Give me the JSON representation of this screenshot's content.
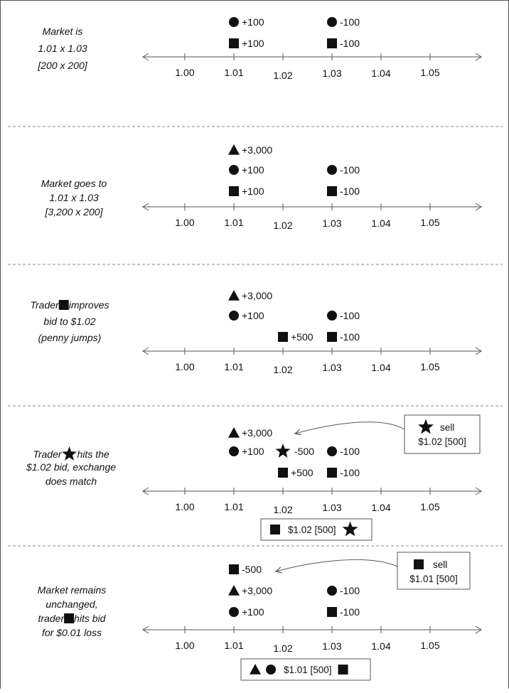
{
  "panels": [
    {
      "label_lines": [
        "Market is",
        "1.01 x 1.03",
        "[200 x 200]"
      ],
      "rows": [
        {
          "items": [
            {
              "shape": "circle",
              "at": "1.01",
              "text": "+100"
            },
            {
              "shape": "circle",
              "at": "1.03",
              "text": "-100"
            }
          ]
        },
        {
          "items": [
            {
              "shape": "square",
              "at": "1.01",
              "text": "+100"
            },
            {
              "shape": "square",
              "at": "1.03",
              "text": "-100"
            }
          ]
        }
      ]
    },
    {
      "label_lines": [
        "Market goes to",
        "1.01 x 1.03",
        "[3,200 x 200]"
      ],
      "rows": [
        {
          "items": [
            {
              "shape": "triangle",
              "at": "1.01",
              "text": "+3,000"
            }
          ]
        },
        {
          "items": [
            {
              "shape": "circle",
              "at": "1.01",
              "text": "+100"
            },
            {
              "shape": "circle",
              "at": "1.03",
              "text": "-100"
            }
          ]
        },
        {
          "items": [
            {
              "shape": "square",
              "at": "1.01",
              "text": "+100"
            },
            {
              "shape": "square",
              "at": "1.03",
              "text": "-100"
            }
          ]
        }
      ]
    },
    {
      "label_lines": [
        [
          "Trader ",
          "square",
          " improves"
        ],
        "bid to $1.02",
        "(penny jumps)"
      ],
      "rows": [
        {
          "items": [
            {
              "shape": "triangle",
              "at": "1.01",
              "text": "+3,000"
            }
          ]
        },
        {
          "items": [
            {
              "shape": "circle",
              "at": "1.01",
              "text": "+100"
            },
            {
              "shape": "circle",
              "at": "1.03",
              "text": "-100"
            }
          ]
        },
        {
          "items": [
            {
              "shape": "square",
              "at": "1.02",
              "text": "+500"
            },
            {
              "shape": "square",
              "at": "1.03",
              "text": "-100"
            }
          ]
        }
      ]
    },
    {
      "label_lines": [
        [
          "Trader",
          "star",
          " hits the"
        ],
        "$1.02 bid, exchange",
        "does match"
      ],
      "rows": [
        {
          "items": [
            {
              "shape": "triangle",
              "at": "1.01",
              "text": "+3,000"
            }
          ]
        },
        {
          "items": [
            {
              "shape": "circle",
              "at": "1.01",
              "text": "+100"
            },
            {
              "shape": "star",
              "at": "1.02",
              "text": "-500"
            },
            {
              "shape": "circle",
              "at": "1.03",
              "text": "-100"
            }
          ]
        },
        {
          "items": [
            {
              "shape": "square",
              "at": "1.02",
              "text": "+500"
            },
            {
              "shape": "square",
              "at": "1.03",
              "text": "-100"
            }
          ]
        }
      ],
      "order_box": {
        "shape": "star",
        "action": "sell",
        "detail": "$1.02 [500]"
      },
      "fill_box": {
        "before": [
          "square"
        ],
        "text": "$1.02 [500]",
        "after": [
          "star"
        ]
      }
    },
    {
      "label_lines": [
        "Market remains",
        "unchanged,",
        [
          "trader ",
          "square",
          " hits bid"
        ],
        "for $0.01 loss"
      ],
      "rows": [
        {
          "items": [
            {
              "shape": "square",
              "at": "1.01",
              "text": "-500"
            }
          ]
        },
        {
          "items": [
            {
              "shape": "triangle",
              "at": "1.01",
              "text": "+3,000"
            },
            {
              "shape": "circle",
              "at": "1.03",
              "text": "-100"
            }
          ]
        },
        {
          "items": [
            {
              "shape": "circle",
              "at": "1.01",
              "text": "+100"
            },
            {
              "shape": "square",
              "at": "1.03",
              "text": "-100"
            }
          ]
        }
      ],
      "order_box": {
        "shape": "square",
        "action": "sell",
        "detail": "$1.01 [500]"
      },
      "fill_box": {
        "before": [
          "triangle",
          "circle"
        ],
        "text": "$1.01 [500]",
        "after": [
          "square"
        ]
      }
    }
  ],
  "axis_ticks": [
    "1.00",
    "1.01",
    "1.02",
    "1.03",
    "1.04",
    "1.05"
  ],
  "colors": {
    "ink": "#111111",
    "axis": "#555555",
    "divider": "#888888"
  }
}
